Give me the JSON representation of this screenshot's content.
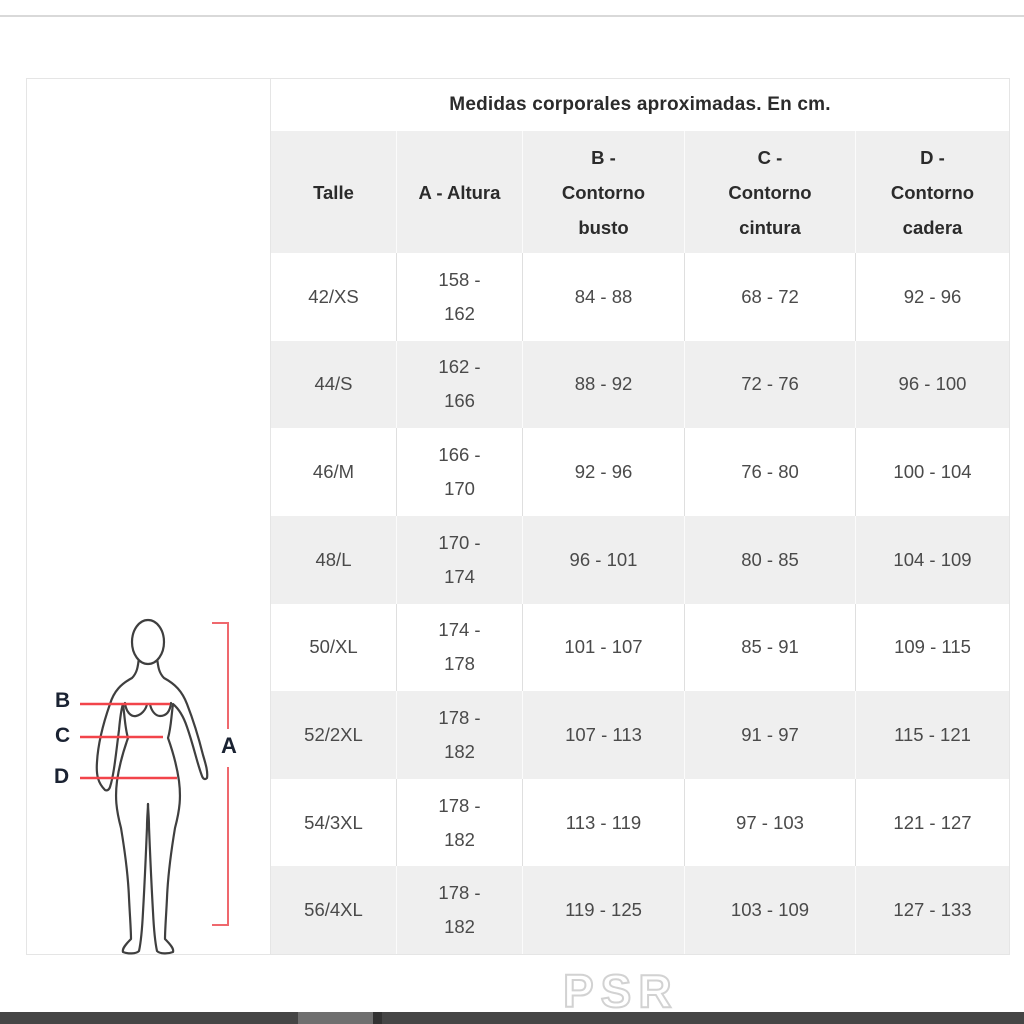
{
  "size_chart": {
    "title": "Medidas corporales aproximadas. En cm.",
    "columns": [
      "Talle",
      "A - Altura",
      "B - Contorno busto",
      "C - Contorno cintura",
      "D - Contorno cadera"
    ],
    "column_keys": [
      "talle",
      "altura",
      "busto",
      "cintura",
      "cadera"
    ],
    "rows": [
      [
        "42/XS",
        "158 - 162",
        "84 - 88",
        "68 - 72",
        "92 - 96"
      ],
      [
        "44/S",
        "162 - 166",
        "88 - 92",
        "72 - 76",
        "96 - 100"
      ],
      [
        "46/M",
        "166 - 170",
        "92 - 96",
        "76 - 80",
        "100 - 104"
      ],
      [
        "48/L",
        "170 - 174",
        "96 - 101",
        "80 - 85",
        "104 - 109"
      ],
      [
        "50/XL",
        "174 - 178",
        "101 - 107",
        "85 - 91",
        "109 - 115"
      ],
      [
        "52/2XL",
        "178 - 182",
        "107 - 113",
        "91 - 97",
        "115 - 121"
      ],
      [
        "54/3XL",
        "178 - 182",
        "113 - 119",
        "97 - 103",
        "121 - 127"
      ],
      [
        "56/4XL",
        "178 - 182",
        "119 - 125",
        "103 - 109",
        "127 - 133"
      ]
    ]
  },
  "figure": {
    "labels": {
      "a": "A",
      "b": "B",
      "c": "C",
      "d": "D"
    },
    "measure_line_color": "#f2444a",
    "bracket_color": "#ef686d",
    "outline_color": "#3f3f3f",
    "label_color": "#1a2232"
  },
  "watermark": {
    "text": "PSR"
  },
  "colors": {
    "row_stripe": "#efefef",
    "card_border": "#e5e5e5",
    "top_divider": "#d9d9d9",
    "taskbar": "#454545",
    "taskbar_highlight": "#6f6f6f"
  }
}
